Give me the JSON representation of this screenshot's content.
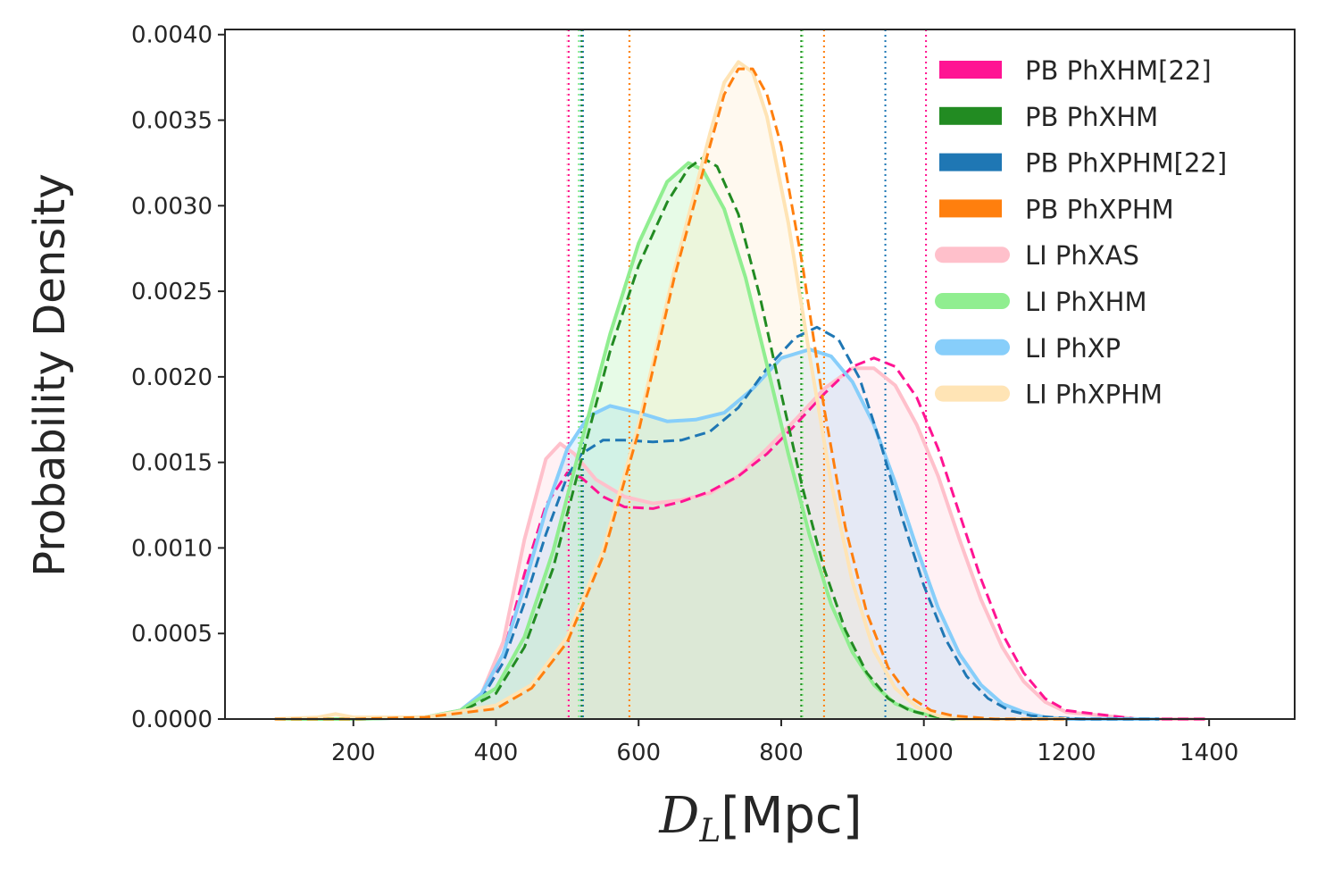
{
  "chart_data": {
    "type": "line",
    "title": "",
    "xlabel_main": "D",
    "xlabel_sub": "L",
    "xlabel_unit": "[Mpc]",
    "ylabel": "Probability Density",
    "xlim": [
      20,
      1520
    ],
    "ylim": [
      0,
      0.00403
    ],
    "x_ticks": [
      200,
      400,
      600,
      800,
      1000,
      1200,
      1400
    ],
    "x_tick_labels": [
      "200",
      "400",
      "600",
      "800",
      "1000",
      "1200",
      "1400"
    ],
    "y_ticks": [
      0,
      0.0005,
      0.001,
      0.0015,
      0.002,
      0.0025,
      0.003,
      0.0035,
      0.004
    ],
    "y_tick_labels": [
      "0.0000",
      "0.0005",
      "0.0010",
      "0.0015",
      "0.0020",
      "0.0025",
      "0.0030",
      "0.0035",
      "0.0040"
    ],
    "grid": false,
    "legend_position": "top-right",
    "series": [
      {
        "name": "LI PhXAS",
        "color": "#FFC0CB",
        "style": "solid",
        "fill": true,
        "x": [
          90,
          200,
          300,
          350,
          380,
          410,
          440,
          470,
          490,
          510,
          540,
          580,
          620,
          660,
          700,
          740,
          780,
          820,
          860,
          900,
          930,
          960,
          990,
          1020,
          1050,
          1080,
          1110,
          1140,
          1170,
          1200,
          1300,
          1395
        ],
        "y": [
          0,
          0,
          1e-05,
          5e-05,
          0.00015,
          0.00045,
          0.00105,
          0.00152,
          0.00161,
          0.00155,
          0.0014,
          0.0013,
          0.00126,
          0.00128,
          0.00132,
          0.00142,
          0.00158,
          0.00175,
          0.00193,
          0.00205,
          0.00205,
          0.00195,
          0.00172,
          0.00142,
          0.00105,
          0.0007,
          0.00042,
          0.00022,
          0.0001,
          4e-05,
          0,
          0
        ]
      },
      {
        "name": "PB PhXHM[22]",
        "color": "#FF1493",
        "style": "dashed",
        "fill": false,
        "x": [
          90,
          200,
          300,
          350,
          380,
          410,
          440,
          470,
          500,
          520,
          550,
          580,
          620,
          660,
          700,
          740,
          780,
          820,
          860,
          900,
          930,
          960,
          990,
          1020,
          1050,
          1080,
          1110,
          1140,
          1170,
          1200,
          1300,
          1395
        ],
        "y": [
          0,
          0,
          1e-05,
          4e-05,
          0.00012,
          0.00038,
          0.00085,
          0.00125,
          0.00144,
          0.00141,
          0.0013,
          0.00124,
          0.00123,
          0.00127,
          0.00133,
          0.00142,
          0.00155,
          0.00172,
          0.0019,
          0.00206,
          0.00211,
          0.00206,
          0.00188,
          0.00158,
          0.0012,
          0.00082,
          0.0005,
          0.00027,
          0.00012,
          5e-05,
          0,
          0
        ]
      },
      {
        "name": "LI PhXP",
        "color": "#87CEFA",
        "style": "solid",
        "fill": true,
        "x": [
          90,
          200,
          300,
          350,
          380,
          410,
          440,
          470,
          500,
          530,
          560,
          600,
          640,
          680,
          720,
          760,
          800,
          840,
          870,
          900,
          930,
          960,
          990,
          1020,
          1050,
          1080,
          1110,
          1140,
          1170,
          1200,
          1330
        ],
        "y": [
          0,
          0,
          1e-05,
          5e-05,
          0.00015,
          0.00038,
          0.00078,
          0.00122,
          0.00158,
          0.00177,
          0.00183,
          0.00179,
          0.00174,
          0.00175,
          0.00179,
          0.00193,
          0.00211,
          0.00216,
          0.00212,
          0.00197,
          0.00172,
          0.00138,
          0.001,
          0.00065,
          0.00038,
          0.0002,
          9e-05,
          4e-05,
          1e-05,
          0,
          0
        ]
      },
      {
        "name": "PB PhXPHM[22]",
        "color": "#1F77B4",
        "style": "dashed",
        "fill": false,
        "x": [
          90,
          200,
          300,
          350,
          380,
          410,
          440,
          470,
          500,
          520,
          550,
          580,
          620,
          660,
          700,
          740,
          780,
          820,
          850,
          880,
          910,
          940,
          970,
          1000,
          1030,
          1060,
          1090,
          1120,
          1150,
          1180,
          1220,
          1330
        ],
        "y": [
          0,
          0,
          1e-05,
          4e-05,
          0.00012,
          0.00033,
          0.00068,
          0.00108,
          0.00142,
          0.00155,
          0.00163,
          0.00163,
          0.00162,
          0.00163,
          0.00168,
          0.00182,
          0.00205,
          0.00223,
          0.00229,
          0.00222,
          0.00199,
          0.0016,
          0.00117,
          0.00078,
          0.00047,
          0.00025,
          0.00012,
          5e-05,
          2e-05,
          1e-05,
          0,
          0
        ]
      },
      {
        "name": "LI PhXHM",
        "color": "#90EE90",
        "style": "solid",
        "fill": true,
        "x": [
          90,
          200,
          300,
          350,
          400,
          440,
          480,
          520,
          560,
          600,
          640,
          670,
          690,
          720,
          750,
          780,
          810,
          840,
          870,
          900,
          930,
          960,
          990,
          1020,
          1050,
          1100,
          1200
        ],
        "y": [
          0,
          0,
          1e-05,
          5e-05,
          0.00018,
          0.00048,
          0.00098,
          0.00162,
          0.00225,
          0.00278,
          0.00314,
          0.00325,
          0.00321,
          0.00298,
          0.00258,
          0.00207,
          0.00155,
          0.00107,
          0.00067,
          0.00039,
          0.0002,
          9e-05,
          4e-05,
          1e-05,
          0,
          0,
          0
        ]
      },
      {
        "name": "PB PhXHM",
        "color": "#228B22",
        "style": "dashed",
        "fill": false,
        "x": [
          90,
          200,
          300,
          350,
          400,
          440,
          480,
          520,
          560,
          600,
          640,
          670,
          690,
          710,
          740,
          770,
          800,
          830,
          860,
          890,
          920,
          950,
          980,
          1010,
          1040,
          1100,
          1200
        ],
        "y": [
          0,
          0,
          1e-05,
          4e-05,
          0.00015,
          0.00042,
          0.00088,
          0.00152,
          0.00215,
          0.00265,
          0.00302,
          0.00322,
          0.00328,
          0.00323,
          0.00295,
          0.00247,
          0.0019,
          0.00135,
          0.00088,
          0.00052,
          0.00027,
          0.00012,
          5e-05,
          2e-05,
          0,
          0,
          0
        ]
      },
      {
        "name": "LI PhXPHM",
        "color": "#FFE4B5",
        "style": "solid",
        "fill": true,
        "x": [
          90,
          150,
          175,
          200,
          300,
          400,
          450,
          500,
          550,
          600,
          650,
          700,
          720,
          740,
          760,
          780,
          810,
          840,
          870,
          900,
          930,
          960,
          990,
          1020,
          1050,
          1100,
          1200
        ],
        "y": [
          0,
          1e-05,
          3e-05,
          1e-05,
          1e-05,
          8e-05,
          0.0002,
          0.00048,
          0.00098,
          0.00172,
          0.00262,
          0.00342,
          0.00372,
          0.00384,
          0.00378,
          0.00352,
          0.0029,
          0.00212,
          0.00138,
          0.0008,
          0.0004,
          0.00018,
          7e-05,
          2e-05,
          0,
          0,
          0
        ]
      },
      {
        "name": "PB PhXPHM",
        "color": "#FF7F0E",
        "style": "dashed",
        "fill": false,
        "x": [
          90,
          200,
          300,
          400,
          450,
          500,
          550,
          600,
          650,
          700,
          720,
          740,
          760,
          780,
          800,
          830,
          860,
          890,
          920,
          950,
          980,
          1010,
          1040,
          1100,
          1200
        ],
        "y": [
          0,
          0,
          1e-05,
          6e-05,
          0.00018,
          0.00045,
          0.00095,
          0.00168,
          0.00258,
          0.00335,
          0.00365,
          0.0038,
          0.0038,
          0.00365,
          0.00335,
          0.00265,
          0.00182,
          0.00112,
          0.00062,
          0.0003,
          0.00013,
          5e-05,
          2e-05,
          0,
          0
        ]
      }
    ],
    "vlines": [
      {
        "series": "LI PhXAS",
        "x": [
          500,
          1003
        ],
        "color": "#FFC0CB"
      },
      {
        "series": "PB PhXHM[22]",
        "x": [
          502,
          1003
        ],
        "color": "#FF1493"
      },
      {
        "series": "LI PhXP",
        "x": [
          518,
          946
        ],
        "color": "#87CEFA"
      },
      {
        "series": "PB PhXPHM[22]",
        "x": [
          522,
          946
        ],
        "color": "#1F77B4"
      },
      {
        "series": "LI PhXHM",
        "x": [
          516,
          830
        ],
        "color": "#90EE90"
      },
      {
        "series": "PB PhXHM",
        "x": [
          520,
          828
        ],
        "color": "#228B22"
      },
      {
        "series": "LI PhXPHM",
        "x": [
          588,
          860
        ],
        "color": "#FFE4B5"
      },
      {
        "series": "PB PhXPHM",
        "x": [
          587,
          860
        ],
        "color": "#FF7F0E"
      }
    ],
    "legend": [
      {
        "label": "PB PhXHM[22]",
        "color": "#FF1493",
        "kind": "patch"
      },
      {
        "label": "PB PhXHM",
        "color": "#228B22",
        "kind": "patch"
      },
      {
        "label": "PB PhXPHM[22]",
        "color": "#1F77B4",
        "kind": "patch"
      },
      {
        "label": "PB PhXPHM",
        "color": "#FF7F0E",
        "kind": "patch"
      },
      {
        "label": "LI PhXAS",
        "color": "#FFC0CB",
        "kind": "line"
      },
      {
        "label": "LI PhXHM",
        "color": "#90EE90",
        "kind": "line"
      },
      {
        "label": "LI PhXP",
        "color": "#87CEFA",
        "kind": "line"
      },
      {
        "label": "LI PhXPHM",
        "color": "#FFE4B5",
        "kind": "line"
      }
    ]
  }
}
